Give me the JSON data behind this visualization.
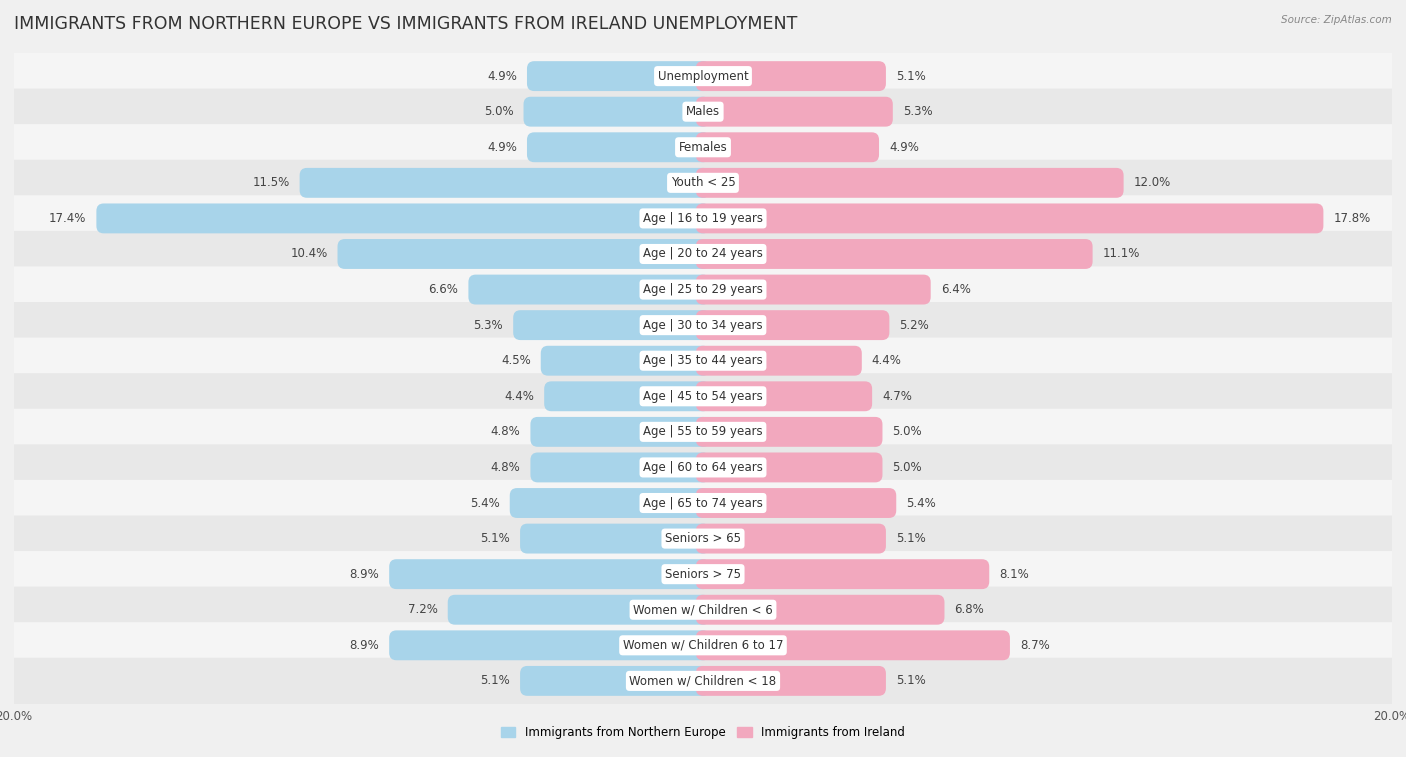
{
  "title": "IMMIGRANTS FROM NORTHERN EUROPE VS IMMIGRANTS FROM IRELAND UNEMPLOYMENT",
  "source": "Source: ZipAtlas.com",
  "categories": [
    "Unemployment",
    "Males",
    "Females",
    "Youth < 25",
    "Age | 16 to 19 years",
    "Age | 20 to 24 years",
    "Age | 25 to 29 years",
    "Age | 30 to 34 years",
    "Age | 35 to 44 years",
    "Age | 45 to 54 years",
    "Age | 55 to 59 years",
    "Age | 60 to 64 years",
    "Age | 65 to 74 years",
    "Seniors > 65",
    "Seniors > 75",
    "Women w/ Children < 6",
    "Women w/ Children 6 to 17",
    "Women w/ Children < 18"
  ],
  "left_values": [
    4.9,
    5.0,
    4.9,
    11.5,
    17.4,
    10.4,
    6.6,
    5.3,
    4.5,
    4.4,
    4.8,
    4.8,
    5.4,
    5.1,
    8.9,
    7.2,
    8.9,
    5.1
  ],
  "right_values": [
    5.1,
    5.3,
    4.9,
    12.0,
    17.8,
    11.1,
    6.4,
    5.2,
    4.4,
    4.7,
    5.0,
    5.0,
    5.4,
    5.1,
    8.1,
    6.8,
    8.7,
    5.1
  ],
  "left_color": "#a8d4ea",
  "right_color": "#f2a8be",
  "bg_color": "#f0f0f0",
  "row_bg_even": "#f5f5f5",
  "row_bg_odd": "#e8e8e8",
  "max_val": 20.0,
  "left_label": "Immigrants from Northern Europe",
  "right_label": "Immigrants from Ireland",
  "title_fontsize": 12.5,
  "label_fontsize": 8.5,
  "value_fontsize": 8.5,
  "cat_fontsize": 8.5
}
